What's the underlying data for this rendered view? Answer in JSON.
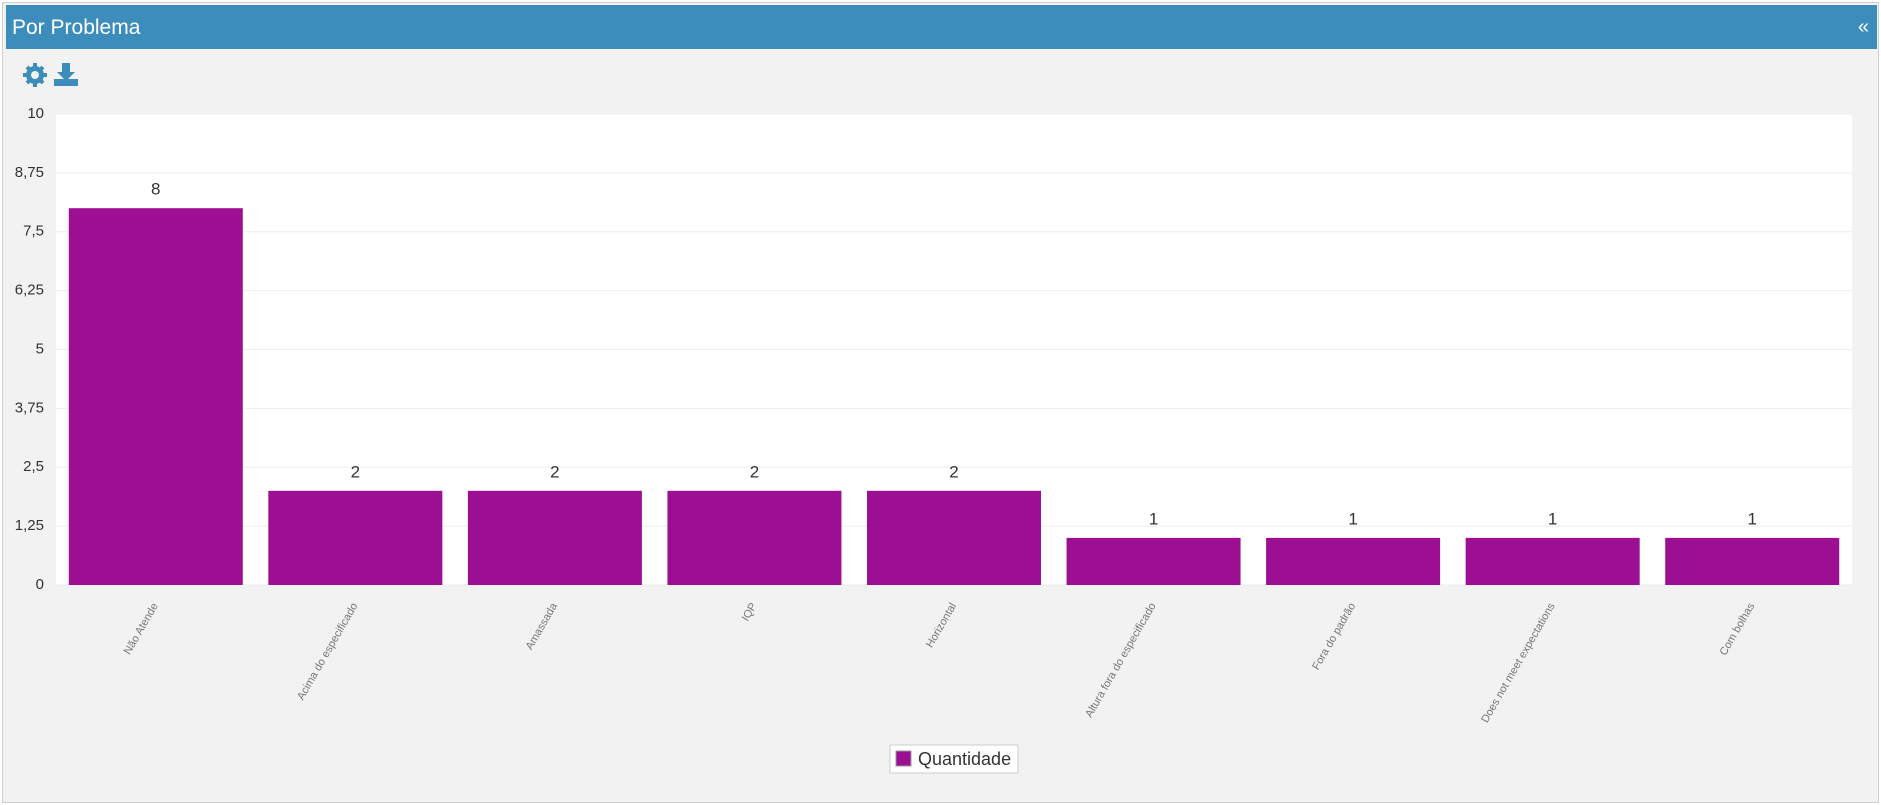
{
  "header": {
    "title": "Por Problema",
    "collapse": "«"
  },
  "chart_data": {
    "type": "bar",
    "categories": [
      "Não Atende",
      "Acima do especificado",
      "Amassada",
      "IQP",
      "Horizontal",
      "Altura fora do especificado",
      "Fora do padrão",
      "Does not meet expectations",
      "Com bolhas"
    ],
    "series": [
      {
        "name": "Quantidade",
        "color": "#9c0e92",
        "values": [
          8,
          2,
          2,
          2,
          2,
          1,
          1,
          1,
          1
        ]
      }
    ],
    "ylim": [
      0,
      10
    ],
    "yticks": [
      0,
      {
        "value": 1.25,
        "label": "1,25"
      },
      {
        "value": 2.5,
        "label": "2,5"
      },
      {
        "value": 3.75,
        "label": "3,75"
      },
      5,
      {
        "value": 6.25,
        "label": "6,25"
      },
      {
        "value": 7.5,
        "label": "7,5"
      },
      {
        "value": 8.75,
        "label": "8,75"
      },
      10
    ],
    "grid": true,
    "legend": "bottom"
  }
}
